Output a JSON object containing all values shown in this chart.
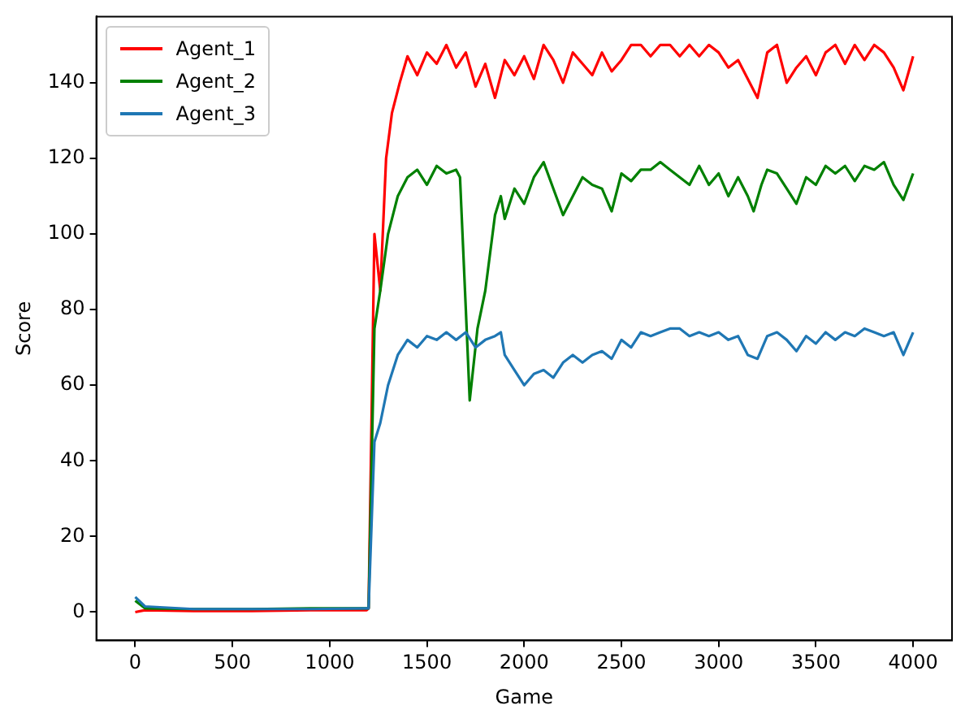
{
  "chart_data": {
    "type": "line",
    "xlabel": "Game",
    "ylabel": "Score",
    "xlim": [
      -200,
      4200
    ],
    "xticks": [
      0,
      500,
      1000,
      1500,
      2000,
      2500,
      3000,
      3500,
      4000
    ],
    "ylim": [
      -7.5,
      157.5
    ],
    "yticks": [
      0,
      20,
      40,
      60,
      80,
      100,
      120,
      140
    ],
    "grid": false,
    "legend": "top left",
    "marker": "none",
    "line_style": "solid",
    "series": [
      {
        "name": "Agent_1",
        "color": "#ff0000",
        "x": [
          0,
          50,
          300,
          600,
          900,
          1190,
          1200,
          1230,
          1260,
          1290,
          1320,
          1360,
          1400,
          1450,
          1500,
          1550,
          1600,
          1650,
          1700,
          1750,
          1800,
          1850,
          1900,
          1950,
          2000,
          2050,
          2100,
          2150,
          2200,
          2250,
          2300,
          2350,
          2400,
          2450,
          2500,
          2550,
          2600,
          2650,
          2700,
          2750,
          2800,
          2850,
          2900,
          2950,
          3000,
          3050,
          3100,
          3150,
          3200,
          3250,
          3300,
          3350,
          3400,
          3450,
          3500,
          3550,
          3600,
          3650,
          3700,
          3750,
          3800,
          3850,
          3900,
          3950,
          4000
        ],
        "values": [
          0,
          0.5,
          0.3,
          0.3,
          0.5,
          0.5,
          1,
          100,
          85,
          120,
          132,
          140,
          147,
          142,
          148,
          145,
          150,
          144,
          148,
          139,
          145,
          136,
          146,
          142,
          147,
          141,
          150,
          146,
          140,
          148,
          145,
          142,
          148,
          143,
          146,
          150,
          150,
          147,
          150,
          150,
          147,
          150,
          147,
          150,
          148,
          144,
          146,
          141,
          136,
          148,
          150,
          140,
          144,
          147,
          142,
          148,
          150,
          145,
          150,
          146,
          150,
          148,
          144,
          138,
          147
        ]
      },
      {
        "name": "Agent_2",
        "color": "#008000",
        "x": [
          0,
          50,
          300,
          600,
          900,
          1190,
          1200,
          1230,
          1260,
          1300,
          1350,
          1400,
          1450,
          1500,
          1550,
          1600,
          1650,
          1670,
          1700,
          1720,
          1760,
          1800,
          1850,
          1880,
          1900,
          1950,
          2000,
          2050,
          2100,
          2150,
          2200,
          2250,
          2300,
          2350,
          2400,
          2450,
          2500,
          2550,
          2600,
          2650,
          2700,
          2750,
          2800,
          2850,
          2900,
          2950,
          3000,
          3050,
          3100,
          3150,
          3180,
          3220,
          3250,
          3300,
          3350,
          3400,
          3450,
          3500,
          3550,
          3600,
          3650,
          3700,
          3750,
          3800,
          3850,
          3900,
          3950,
          4000
        ],
        "values": [
          3,
          1,
          0.8,
          0.8,
          1,
          1,
          1,
          75,
          85,
          100,
          110,
          115,
          117,
          113,
          118,
          116,
          117,
          115,
          80,
          56,
          75,
          85,
          105,
          110,
          104,
          112,
          108,
          115,
          119,
          112,
          105,
          110,
          115,
          113,
          112,
          106,
          116,
          114,
          117,
          117,
          119,
          117,
          115,
          113,
          118,
          113,
          116,
          110,
          115,
          110,
          106,
          113,
          117,
          116,
          112,
          108,
          115,
          113,
          118,
          116,
          118,
          114,
          118,
          117,
          119,
          113,
          109,
          116
        ]
      },
      {
        "name": "Agent_3",
        "color": "#1f77b4",
        "x": [
          0,
          50,
          300,
          600,
          900,
          1190,
          1200,
          1230,
          1260,
          1300,
          1350,
          1400,
          1450,
          1500,
          1550,
          1600,
          1650,
          1700,
          1750,
          1800,
          1850,
          1880,
          1900,
          1950,
          2000,
          2050,
          2100,
          2150,
          2200,
          2250,
          2300,
          2350,
          2400,
          2450,
          2500,
          2550,
          2600,
          2650,
          2700,
          2750,
          2800,
          2850,
          2900,
          2950,
          3000,
          3050,
          3100,
          3150,
          3200,
          3250,
          3300,
          3350,
          3400,
          3450,
          3500,
          3550,
          3600,
          3650,
          3700,
          3750,
          3800,
          3850,
          3900,
          3950,
          4000
        ],
        "values": [
          4,
          1.5,
          0.8,
          0.8,
          0.8,
          1,
          1,
          45,
          50,
          60,
          68,
          72,
          70,
          73,
          72,
          74,
          72,
          74,
          70,
          72,
          73,
          74,
          68,
          64,
          60,
          63,
          64,
          62,
          66,
          68,
          66,
          68,
          69,
          67,
          72,
          70,
          74,
          73,
          74,
          75,
          75,
          73,
          74,
          73,
          74,
          72,
          73,
          68,
          67,
          73,
          74,
          72,
          69,
          73,
          71,
          74,
          72,
          74,
          73,
          75,
          74,
          73,
          74,
          68,
          74
        ]
      }
    ]
  }
}
